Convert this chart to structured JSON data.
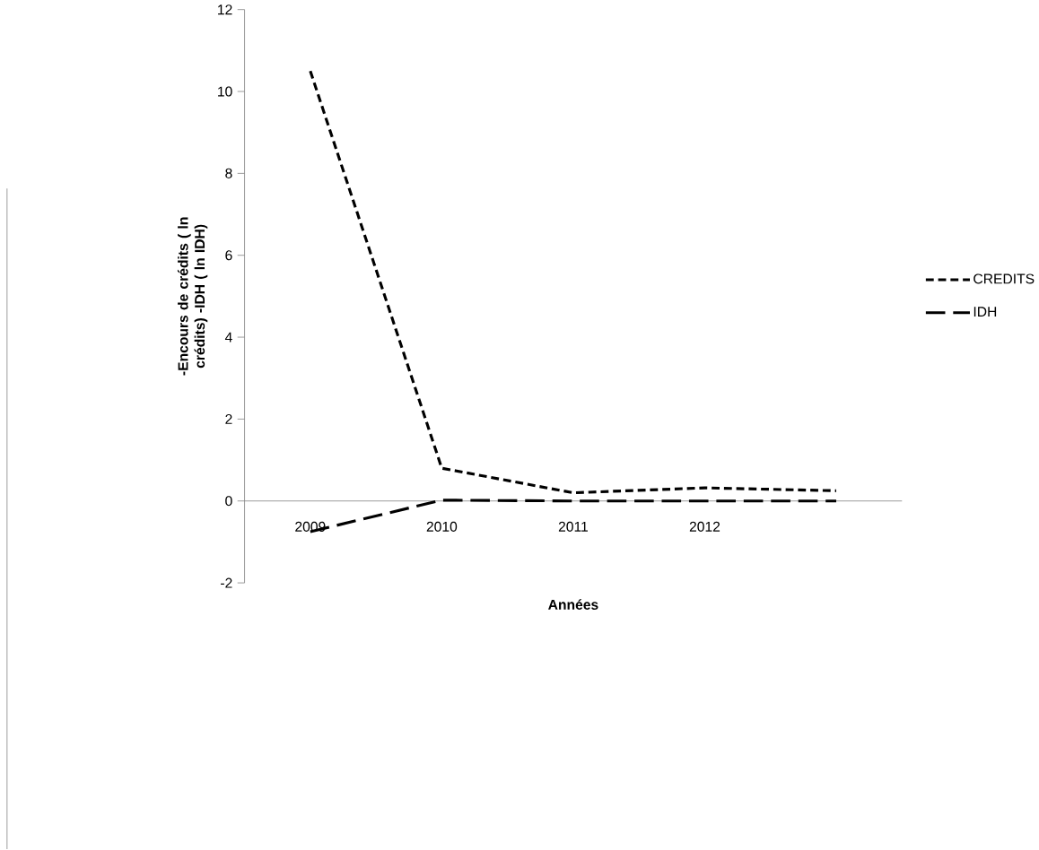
{
  "chart_data": {
    "type": "line",
    "xlabel": "Années",
    "ylabel": "-Encours de crédits ( ln crédits) -IDH ( ln IDH)",
    "categories": [
      "2009",
      "2010",
      "2011",
      "2012",
      null
    ],
    "series": [
      {
        "name": "CREDITS",
        "color": "#000000",
        "line_style": "dashed",
        "values": [
          10.5,
          0.8,
          0.2,
          0.32,
          0.25
        ]
      },
      {
        "name": "IDH",
        "color": "#000000",
        "line_style": "dashed",
        "values": [
          -0.75,
          0.02,
          0,
          0,
          0
        ]
      }
    ],
    "ylim": [
      -2,
      12
    ],
    "yticks": [
      -2,
      0,
      2,
      4,
      6,
      8,
      10,
      12
    ],
    "legend": "right",
    "grid": false,
    "marker": "none"
  }
}
